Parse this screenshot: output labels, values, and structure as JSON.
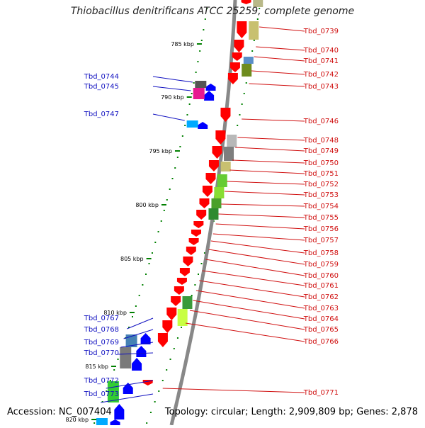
{
  "title": "Thiobacillus denitrificans ATCC 25259, complete genome",
  "footer": {
    "accession": "Accession: NC_007404",
    "summary": "Topology: circular; Length: 2,909,809 bp; Genes: 2,878"
  },
  "colors": {
    "forward_cds": "#ff0000",
    "reverse_cds": "#0000ff",
    "forward_label": "#d01010",
    "reverse_label": "#1010c0",
    "backbone": "#888888",
    "tick": "#008000"
  },
  "ruler": [
    {
      "label": "785 kbp"
    },
    {
      "label": "790 kbp"
    },
    {
      "label": "795 kbp"
    },
    {
      "label": "800 kbp"
    },
    {
      "label": "805 kbp"
    },
    {
      "label": "810 kbp"
    },
    {
      "label": "815 kbp"
    },
    {
      "label": "820 kbp"
    }
  ],
  "genes_forward": [
    "Tbd_0739",
    "Tbd_0740",
    "Tbd_0741",
    "Tbd_0742",
    "Tbd_0743",
    "Tbd_0746",
    "Tbd_0748",
    "Tbd_0749",
    "Tbd_0750",
    "Tbd_0751",
    "Tbd_0752",
    "Tbd_0753",
    "Tbd_0754",
    "Tbd_0755",
    "Tbd_0756",
    "Tbd_0757",
    "Tbd_0758",
    "Tbd_0759",
    "Tbd_0760",
    "Tbd_0761",
    "Tbd_0762",
    "Tbd_0763",
    "Tbd_0764",
    "Tbd_0765",
    "Tbd_0766",
    "Tbd_0771"
  ],
  "genes_reverse": [
    "Tbd_0744",
    "Tbd_0745",
    "Tbd_0747",
    "Tbd_0767",
    "Tbd_0768",
    "Tbd_0769",
    "Tbd_0770",
    "Tbd_0772",
    "Tbd_0773"
  ]
}
